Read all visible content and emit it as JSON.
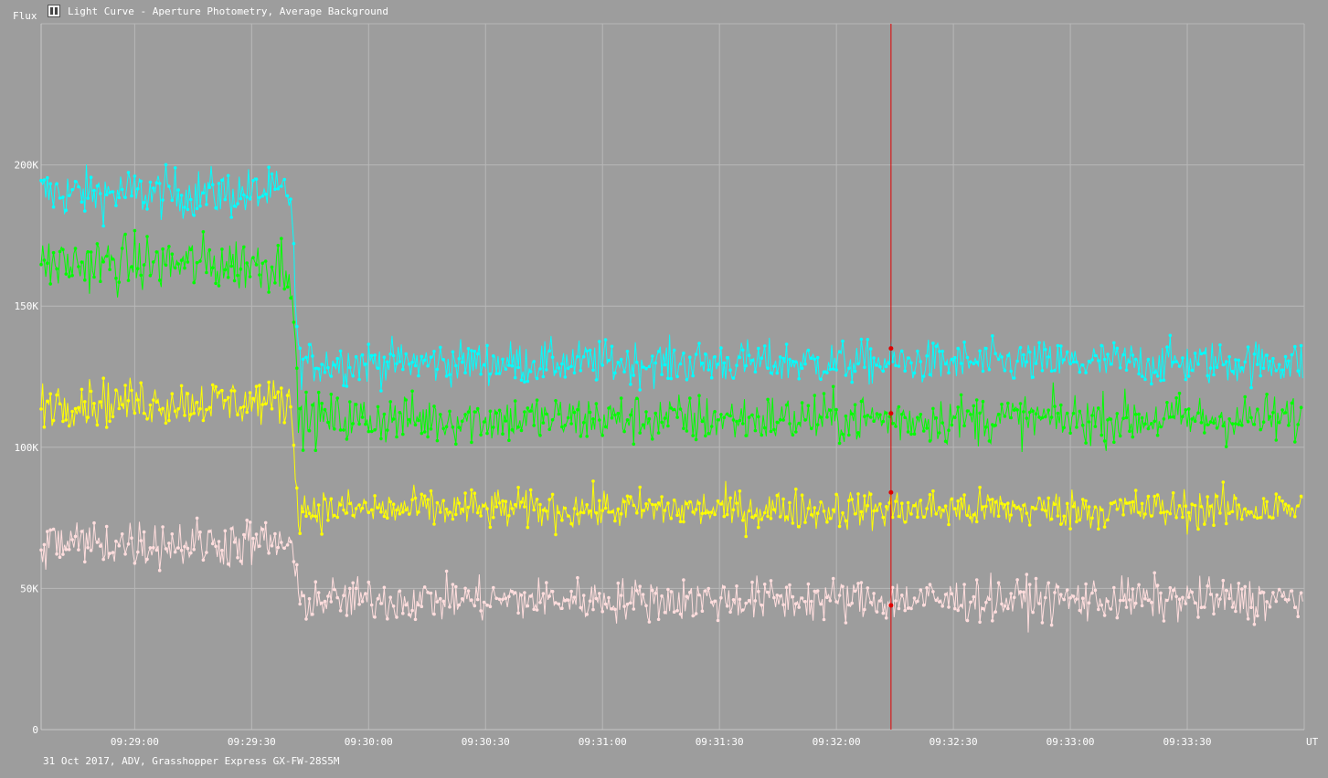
{
  "window": {
    "title": "Light Curve - Aperture Photometry, Average Background",
    "icon": "light-curve-app-icon"
  },
  "footer": {
    "info": "31 Oct 2017, ADV, Grasshopper Express GX-FW-28S5M"
  },
  "colors": {
    "background": "#9d9d9d",
    "grid": "#b8b8b8",
    "axis_text": "#ffffff",
    "cursor": "#e00000"
  },
  "chart_data": {
    "type": "line",
    "title": "Light Curve - Aperture Photometry, Average Background",
    "ylabel": "Flux",
    "xlabel": "UT",
    "ylim": [
      0,
      250000
    ],
    "y_ticks": [
      {
        "value": 0,
        "label": "0"
      },
      {
        "value": 50000,
        "label": "50K"
      },
      {
        "value": 100000,
        "label": "100K"
      },
      {
        "value": 150000,
        "label": "150K"
      },
      {
        "value": 200000,
        "label": "200K"
      }
    ],
    "xlim": [
      "09:28:36",
      "09:34:00"
    ],
    "x_ticks": [
      "09:29:00",
      "09:29:30",
      "09:30:00",
      "09:30:30",
      "09:31:00",
      "09:31:30",
      "09:32:00",
      "09:32:30",
      "09:33:00",
      "09:33:30"
    ],
    "grid": true,
    "markers": true,
    "step_time": "09:29:41",
    "cursor": {
      "time": "09:32:14",
      "values": [
        135000,
        112000,
        84000,
        44000
      ]
    },
    "series": [
      {
        "color": "#00ffff",
        "level_before": 190000,
        "level_after": 130000,
        "noise": 6500
      },
      {
        "color": "#00ff00",
        "level_before": 165000,
        "level_after": 110000,
        "noise": 7500
      },
      {
        "color": "#ffff00",
        "level_before": 116000,
        "level_after": 78000,
        "noise": 6000
      },
      {
        "color": "#ffdddd",
        "level_before": 66000,
        "level_after": 46000,
        "noise": 6500
      }
    ]
  }
}
